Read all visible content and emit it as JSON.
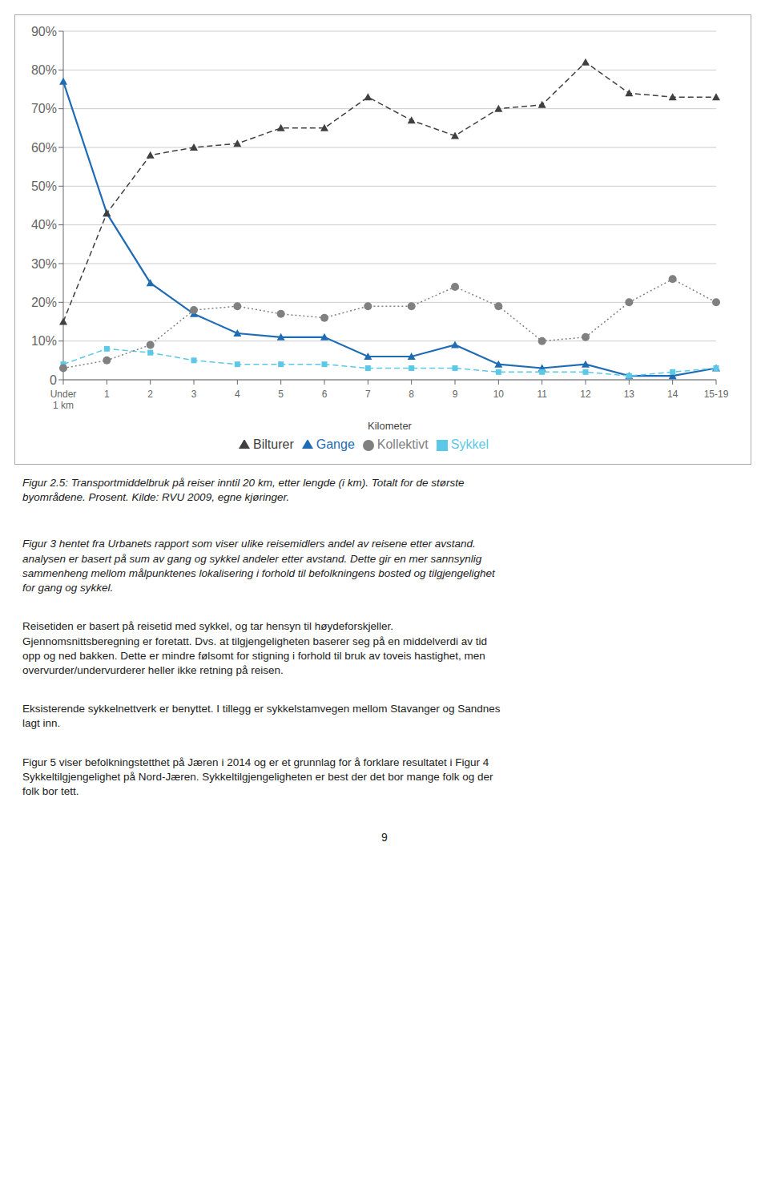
{
  "chart_data": {
    "type": "line",
    "categories": [
      "Under\n1 km",
      "1",
      "2",
      "3",
      "4",
      "5",
      "6",
      "7",
      "8",
      "9",
      "10",
      "11",
      "12",
      "13",
      "14",
      "15-19"
    ],
    "x_label": "Kilometer",
    "series": [
      {
        "name": "Gange",
        "color": "#1f6cb5",
        "marker": "triangle",
        "line_style": "solid",
        "values": [
          0.77,
          0.43,
          0.25,
          0.17,
          0.12,
          0.11,
          0.11,
          0.06,
          0.06,
          0.09,
          0.04,
          0.03,
          0.04,
          0.01,
          0.01,
          0.03
        ]
      },
      {
        "name": "Sykkel",
        "color": "#5bc8e8",
        "marker": "square",
        "line_style": "dashed",
        "values": [
          0.04,
          0.08,
          0.07,
          0.05,
          0.04,
          0.04,
          0.04,
          0.03,
          0.03,
          0.03,
          0.02,
          0.02,
          0.02,
          0.01,
          0.02,
          0.03
        ]
      },
      {
        "name": "Bilturer",
        "color": "#404040",
        "marker": "triangle",
        "line_style": "dashed",
        "values": [
          0.15,
          0.43,
          0.58,
          0.6,
          0.61,
          0.65,
          0.65,
          0.73,
          0.67,
          0.63,
          0.7,
          0.71,
          0.82,
          0.74,
          0.73,
          0.73
        ]
      },
      {
        "name": "Kollektivt",
        "color": "#808080",
        "marker": "circle",
        "line_style": "dotted",
        "values": [
          0.03,
          0.05,
          0.09,
          0.18,
          0.19,
          0.17,
          0.16,
          0.19,
          0.19,
          0.24,
          0.19,
          0.1,
          0.11,
          0.2,
          0.26,
          0.2
        ]
      }
    ],
    "ylim": [
      0,
      0.9
    ],
    "yticks": [
      0,
      {
        "value": 0.1,
        "label": "10%"
      },
      {
        "value": 0.2,
        "label": "20%"
      },
      {
        "value": 0.3,
        "label": "30%"
      },
      {
        "value": 0.4,
        "label": "40%"
      },
      {
        "value": 0.5,
        "label": "50%"
      },
      {
        "value": 0.6,
        "label": "60%"
      },
      {
        "value": 0.7,
        "label": "70%"
      },
      {
        "value": 0.8,
        "label": "80%"
      },
      {
        "value": 0.9,
        "label": "90%"
      }
    ],
    "grid": true,
    "legend": "bottom",
    "annotations": [
      "Figur 2.5: Transportmiddelbruk på reiser inntil 20 km, etter lengde (i km). Totalt for de største\nbyområdene. Prosent. Kilde: RVU 2009, egne kjøringer.",
      "Figur 3 hentet fra Urbanets rapport som viser ulike reisemidlers andel av reisene etter avstand.\nanalysen er basert på sum av gang og sykkel andeler etter avstand. Dette gir en mer sannsynlig\nsammenheng mellom målpunktenes lokalisering i forhold til befolkningens bosted og tilgjengelighet\nfor gang og sykkel.",
      "Reisetiden er basert på reisetid med sykkel, og tar hensyn til høydeforskjeller.\nGjennomsnittsberegning er foretatt. Dvs. at tilgjengeligheten baserer seg på en middelverdi av tid\nopp og ned bakken. Dette er mindre følsomt for stigning i forhold til bruk av toveis hastighet, men\novervurder/undervurderer heller ikke retning på reisen.",
      "Eksisterende sykkelnettverk er benyttet. I tillegg er sykkelstamvegen mellom Stavanger og Sandnes\nlagt inn.",
      "Figur 5 viser befolkningstetthet på Jæren i 2014 og er et grunnlag for å forklare resultatet i Figur 4\nSykkeltilgjengelighet på Nord-Jæren. Sykkeltilgjengeligheten er best der det bor mange folk og der\nfolk bor tett.",
      "9"
    ]
  }
}
